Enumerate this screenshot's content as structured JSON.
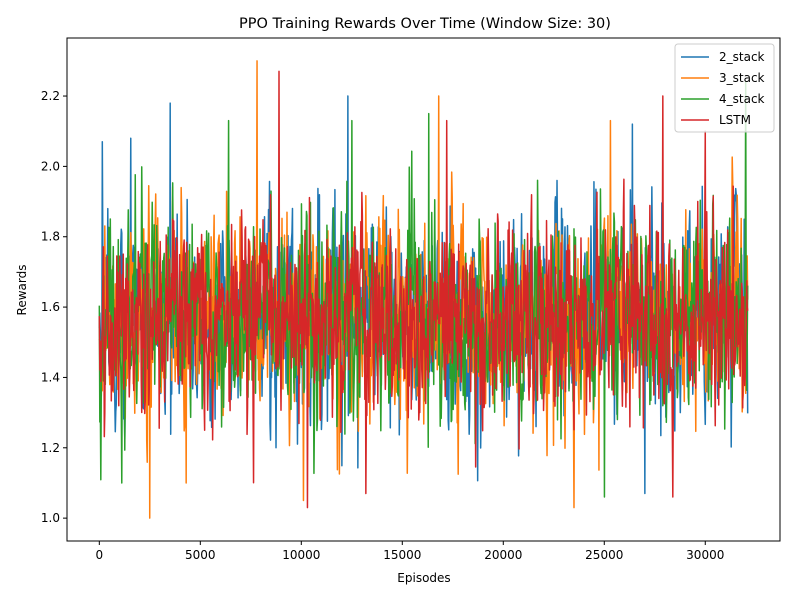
{
  "chart_data": {
    "type": "line",
    "title": "PPO Training Rewards Over Time (Window Size: 30)",
    "xlabel": "Episodes",
    "ylabel": "Rewards",
    "xlim": [
      -1600,
      33700
    ],
    "ylim": [
      0.935,
      2.365
    ],
    "xticks": [
      0,
      5000,
      10000,
      15000,
      20000,
      25000,
      30000
    ],
    "yticks": [
      1.0,
      1.2,
      1.4,
      1.6,
      1.8,
      2.0,
      2.2
    ],
    "ytick_labels": [
      "1.0",
      "1.2",
      "1.4",
      "1.6",
      "1.8",
      "2.0",
      "2.2"
    ],
    "grid": false,
    "legend_position": "top-right",
    "x_range": [
      0,
      32100
    ],
    "series": [
      {
        "name": "2_stack",
        "color": "#1f77b4",
        "mean": 1.57,
        "spread": 0.2,
        "min": 1.07,
        "max": 2.2,
        "peaks": [
          [
            12300,
            2.2
          ],
          [
            3500,
            2.18
          ],
          [
            150,
            2.07
          ],
          [
            1550,
            2.08
          ],
          [
            26400,
            2.12
          ],
          [
            27000,
            1.07
          ]
        ]
      },
      {
        "name": "3_stack",
        "color": "#ff7f0e",
        "mean": 1.57,
        "spread": 0.2,
        "min": 1.0,
        "max": 2.3,
        "peaks": [
          [
            7800,
            2.3
          ],
          [
            16800,
            2.2
          ],
          [
            2500,
            1.0
          ],
          [
            10100,
            1.05
          ],
          [
            4300,
            1.1
          ],
          [
            25300,
            2.13
          ]
        ]
      },
      {
        "name": "4_stack",
        "color": "#2ca02c",
        "mean": 1.57,
        "spread": 0.2,
        "min": 1.06,
        "max": 2.24,
        "peaks": [
          [
            32000,
            2.24
          ],
          [
            6400,
            2.13
          ],
          [
            12500,
            2.13
          ],
          [
            16300,
            2.15
          ],
          [
            25000,
            1.06
          ],
          [
            1100,
            1.1
          ]
        ]
      },
      {
        "name": "LSTM",
        "color": "#d62728",
        "mean": 1.57,
        "spread": 0.19,
        "min": 1.03,
        "max": 2.27,
        "peaks": [
          [
            8900,
            2.27
          ],
          [
            27900,
            2.2
          ],
          [
            10300,
            1.03
          ],
          [
            13200,
            1.07
          ],
          [
            17200,
            2.13
          ],
          [
            30000,
            2.1
          ]
        ]
      }
    ]
  }
}
